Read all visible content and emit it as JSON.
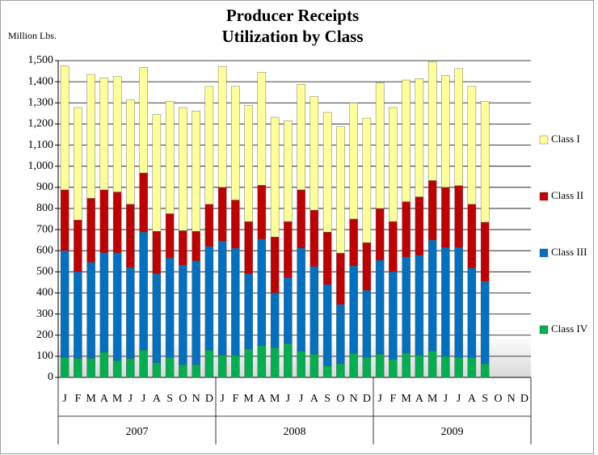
{
  "chart_data": {
    "type": "stacked_bar",
    "title": "Producer Receipts",
    "subtitle": "Utilization by Class",
    "y_axis_label": "Million Lbs.",
    "categories": [
      "J",
      "F",
      "M",
      "A",
      "M",
      "J",
      "J",
      "A",
      "S",
      "O",
      "N",
      "D",
      "J",
      "F",
      "M",
      "A",
      "M",
      "J",
      "J",
      "A",
      "S",
      "O",
      "N",
      "D",
      "J",
      "F",
      "M",
      "A",
      "M",
      "J",
      "J",
      "A",
      "S",
      "O",
      "N",
      "D"
    ],
    "category_groups": [
      "2007",
      "2008",
      "2009"
    ],
    "ylim": [
      0,
      1500
    ],
    "yticks": [
      0,
      100,
      200,
      300,
      400,
      500,
      600,
      700,
      800,
      900,
      {
        "value": 1000,
        "label": "1,000"
      },
      {
        "value": 1100,
        "label": "1,100"
      },
      {
        "value": 1200,
        "label": "1,200"
      },
      {
        "value": 1300,
        "label": "1,300"
      },
      {
        "value": 1400,
        "label": "1,400"
      },
      {
        "value": 1500,
        "label": "1,500"
      }
    ],
    "grid": true,
    "legend": "right",
    "series": [
      {
        "name": "Class IV",
        "color": "#00b050",
        "values": [
          95,
          90,
          90,
          120,
          80,
          90,
          130,
          70,
          95,
          60,
          60,
          130,
          105,
          105,
          135,
          150,
          140,
          160,
          125,
          110,
          55,
          65,
          115,
          95,
          110,
          85,
          115,
          105,
          125,
          100,
          95,
          95,
          65,
          null,
          null,
          null
        ]
      },
      {
        "name": "Class III",
        "color": "#0070c0",
        "values": [
          505,
          410,
          455,
          470,
          510,
          430,
          558,
          420,
          470,
          472,
          492,
          490,
          540,
          507,
          355,
          505,
          260,
          312,
          487,
          415,
          385,
          280,
          413,
          317,
          445,
          415,
          455,
          473,
          525,
          515,
          520,
          423,
          390,
          null,
          null,
          null
        ]
      },
      {
        "name": "Class II",
        "color": "#c00000",
        "values": [
          288,
          245,
          303,
          298,
          288,
          300,
          280,
          202,
          210,
          163,
          140,
          200,
          255,
          228,
          248,
          255,
          265,
          266,
          276,
          267,
          248,
          243,
          222,
          226,
          245,
          238,
          262,
          277,
          282,
          285,
          293,
          302,
          280,
          null,
          null,
          null
        ]
      },
      {
        "name": "Class I",
        "color": "#ffff99",
        "values": [
          587,
          533,
          587,
          530,
          547,
          495,
          500,
          553,
          533,
          583,
          570,
          558,
          572,
          538,
          550,
          535,
          567,
          477,
          500,
          538,
          567,
          600,
          550,
          590,
          595,
          540,
          576,
          560,
          563,
          530,
          554,
          558,
          573,
          null,
          null,
          null
        ]
      }
    ]
  }
}
